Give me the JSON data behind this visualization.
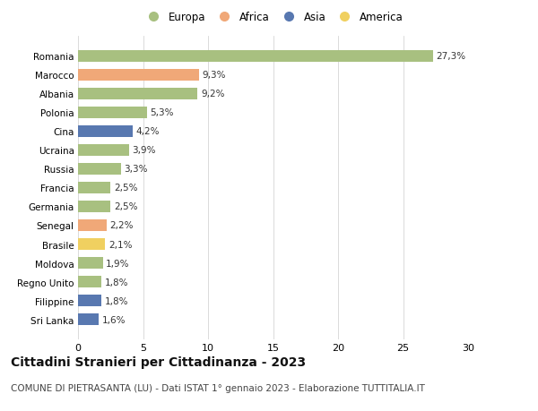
{
  "categories": [
    "Romania",
    "Marocco",
    "Albania",
    "Polonia",
    "Cina",
    "Ucraina",
    "Russia",
    "Francia",
    "Germania",
    "Senegal",
    "Brasile",
    "Moldova",
    "Regno Unito",
    "Filippine",
    "Sri Lanka"
  ],
  "values": [
    27.3,
    9.3,
    9.2,
    5.3,
    4.2,
    3.9,
    3.3,
    2.5,
    2.5,
    2.2,
    2.1,
    1.9,
    1.8,
    1.8,
    1.6
  ],
  "labels": [
    "27,3%",
    "9,3%",
    "9,2%",
    "5,3%",
    "4,2%",
    "3,9%",
    "3,3%",
    "2,5%",
    "2,5%",
    "2,2%",
    "2,1%",
    "1,9%",
    "1,8%",
    "1,8%",
    "1,6%"
  ],
  "continents": [
    "Europa",
    "Africa",
    "Europa",
    "Europa",
    "Asia",
    "Europa",
    "Europa",
    "Europa",
    "Europa",
    "Africa",
    "America",
    "Europa",
    "Europa",
    "Asia",
    "Asia"
  ],
  "continent_colors": {
    "Europa": "#a8c080",
    "Africa": "#f0a878",
    "Asia": "#5878b0",
    "America": "#f0d060"
  },
  "legend_order": [
    "Europa",
    "Africa",
    "Asia",
    "America"
  ],
  "xlim": [
    0,
    30
  ],
  "xticks": [
    0,
    5,
    10,
    15,
    20,
    25,
    30
  ],
  "title": "Cittadini Stranieri per Cittadinanza - 2023",
  "subtitle": "COMUNE DI PIETRASANTA (LU) - Dati ISTAT 1° gennaio 2023 - Elaborazione TUTTITALIA.IT",
  "background_color": "#ffffff",
  "bar_height": 0.62,
  "label_fontsize": 7.5,
  "ytick_fontsize": 7.5,
  "xtick_fontsize": 8,
  "title_fontsize": 10,
  "subtitle_fontsize": 7.5,
  "legend_fontsize": 8.5
}
